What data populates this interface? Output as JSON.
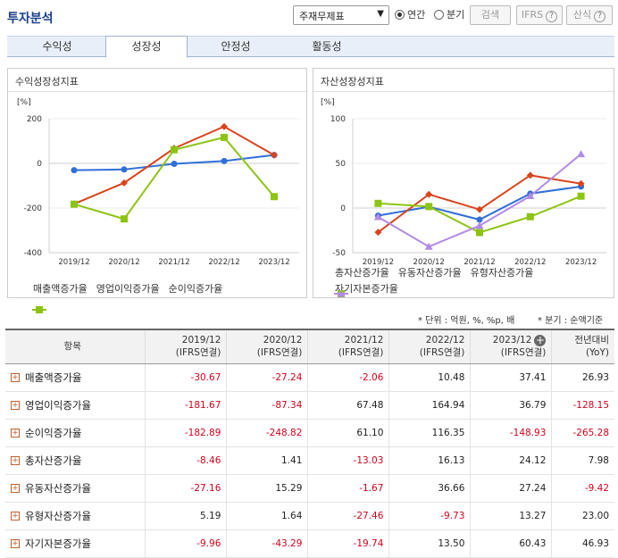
{
  "header": {
    "title": "투자분석",
    "select_value": "주재무제표",
    "radio_annual": "연간",
    "radio_quarter": "분기",
    "search_label": "검색",
    "ifrs_label": "IFRS",
    "formula_label": "산식",
    "help_glyph": "?"
  },
  "tabs": [
    "수익성",
    "성장성",
    "안정성",
    "활동성"
  ],
  "active_tab": 1,
  "left_panel": {
    "title": "수익성장성지표",
    "unit": "[%]"
  },
  "right_panel": {
    "title": "자산성장성지표",
    "unit": "[%]"
  },
  "colors": {
    "blue": "#2f6fd8",
    "red": "#d9441c",
    "green": "#8cc414",
    "purple": "#b28ae6"
  },
  "chart_data": [
    {
      "type": "line",
      "x": [
        "2019/12",
        "2020/12",
        "2021/12",
        "2022/12",
        "2023/12"
      ],
      "ylim": [
        -400,
        200
      ],
      "yticks": [
        200,
        0,
        -200,
        -400
      ],
      "series": [
        {
          "name": "매출액증가율",
          "values": [
            -30.67,
            -27.24,
            -2.06,
            10.48,
            37.41
          ],
          "color": "#2f6fd8",
          "marker": "circle"
        },
        {
          "name": "영업이익증가율",
          "values": [
            -181.67,
            -87.34,
            67.48,
            164.94,
            36.79
          ],
          "color": "#d9441c",
          "marker": "diamond"
        },
        {
          "name": "순이익증가율",
          "values": [
            -182.89,
            -248.82,
            61.1,
            116.35,
            -148.93
          ],
          "color": "#8cc414",
          "marker": "square"
        }
      ]
    },
    {
      "type": "line",
      "x": [
        "2019/12",
        "2020/12",
        "2021/12",
        "2022/12",
        "2023/12"
      ],
      "ylim": [
        -50,
        100
      ],
      "yticks": [
        100,
        50,
        0,
        -50
      ],
      "series": [
        {
          "name": "총자산증가율",
          "values": [
            -8.46,
            1.41,
            -13.03,
            16.13,
            24.12
          ],
          "color": "#2f6fd8",
          "marker": "circle"
        },
        {
          "name": "유동자산증가율",
          "values": [
            -27.16,
            15.29,
            -1.67,
            36.66,
            27.24
          ],
          "color": "#d9441c",
          "marker": "diamond"
        },
        {
          "name": "유형자산증가율",
          "values": [
            5.19,
            1.64,
            -27.46,
            -9.73,
            13.27
          ],
          "color": "#8cc414",
          "marker": "square"
        },
        {
          "name": "자기자본증가율",
          "values": [
            -9.96,
            -43.29,
            -19.74,
            13.5,
            60.43
          ],
          "color": "#b28ae6",
          "marker": "triangle"
        }
      ]
    }
  ],
  "notes": {
    "unit_note": "* 단위 : 억원, %, %p, 배",
    "quarter_note": "* 분기 : 순액기준"
  },
  "table": {
    "header_item": "항목",
    "columns": [
      {
        "year": "2019/12",
        "basis": "(IFRS연결)"
      },
      {
        "year": "2020/12",
        "basis": "(IFRS연결)"
      },
      {
        "year": "2021/12",
        "basis": "(IFRS연결)"
      },
      {
        "year": "2022/12",
        "basis": "(IFRS연결)"
      },
      {
        "year": "2023/12",
        "basis": "(IFRS연결)"
      },
      {
        "year": "전년대비",
        "basis": "(YoY)"
      }
    ],
    "rows": [
      {
        "label": "매출액증가율",
        "values": [
          "-30.67",
          "-27.24",
          "-2.06",
          "10.48",
          "37.41",
          "26.93"
        ]
      },
      {
        "label": "영업이익증가율",
        "values": [
          "-181.67",
          "-87.34",
          "67.48",
          "164.94",
          "36.79",
          "-128.15"
        ]
      },
      {
        "label": "순이익증가율",
        "values": [
          "-182.89",
          "-248.82",
          "61.10",
          "116.35",
          "-148.93",
          "-265.28"
        ]
      },
      {
        "label": "총자산증가율",
        "values": [
          "-8.46",
          "1.41",
          "-13.03",
          "16.13",
          "24.12",
          "7.98"
        ]
      },
      {
        "label": "유동자산증가율",
        "values": [
          "-27.16",
          "15.29",
          "-1.67",
          "36.66",
          "27.24",
          "-9.42"
        ]
      },
      {
        "label": "유형자산증가율",
        "values": [
          "5.19",
          "1.64",
          "-27.46",
          "-9.73",
          "13.27",
          "23.00"
        ]
      },
      {
        "label": "자기자본증가율",
        "values": [
          "-9.96",
          "-43.29",
          "-19.74",
          "13.50",
          "60.43",
          "46.93"
        ]
      }
    ]
  }
}
